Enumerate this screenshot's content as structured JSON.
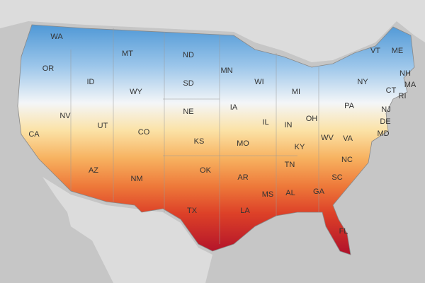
{
  "labels": [
    "WA",
    "OR",
    "ID",
    "MT",
    "WY",
    "NV",
    "UT",
    "CA",
    "AZ",
    "CO",
    "NM",
    "ND",
    "SD",
    "NE",
    "KS",
    "OK",
    "TX",
    "MN",
    "IA",
    "MO",
    "AR",
    "LA",
    "WI",
    "IL",
    "MS",
    "MI",
    "IN",
    "OH",
    "KY",
    "TN",
    "AL",
    "GA",
    "FL",
    "WV",
    "VA",
    "NC",
    "SC",
    "PA",
    "NY",
    "VT",
    "ME",
    "NH",
    "MA",
    "CT",
    "RI",
    "NJ",
    "DE",
    "MD"
  ]
}
